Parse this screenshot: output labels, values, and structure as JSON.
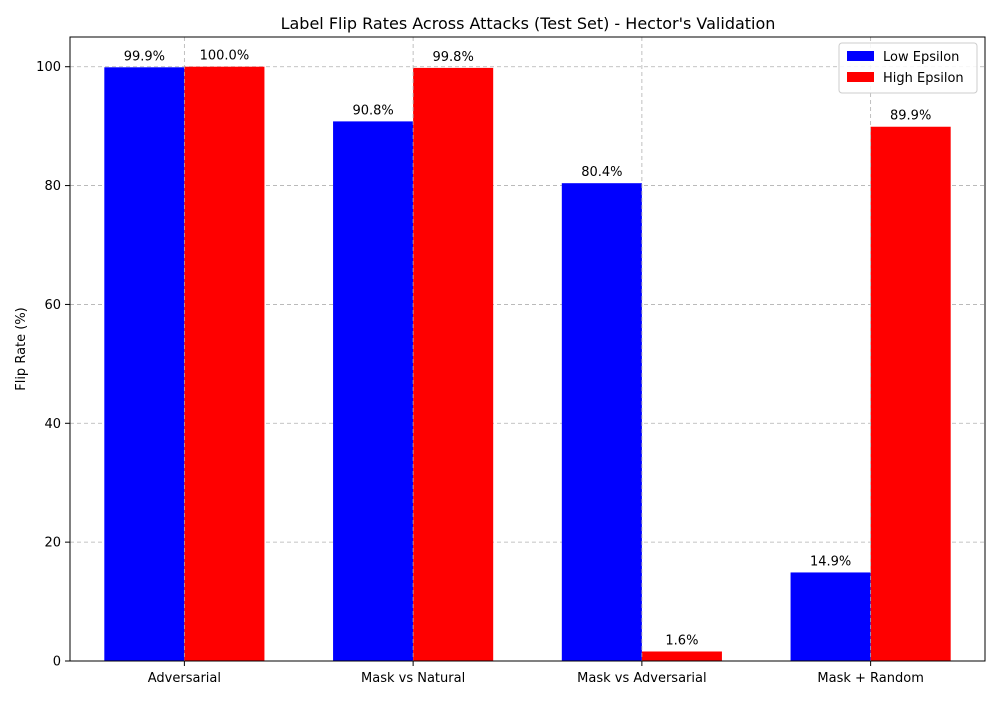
{
  "chart_data": {
    "type": "bar",
    "title": "Label Flip Rates Across Attacks (Test Set) - Hector's Validation",
    "xlabel": "",
    "ylabel": "Flip Rate (%)",
    "ylim": [
      0,
      105
    ],
    "yticks": [
      0,
      20,
      40,
      60,
      80,
      100
    ],
    "grid": true,
    "legend_position": "top-right",
    "categories": [
      "Adversarial",
      "Mask vs Natural",
      "Mask vs Adversarial",
      "Mask + Random"
    ],
    "series": [
      {
        "name": "Low Epsilon",
        "color": "#0000ff",
        "values": [
          99.9,
          90.8,
          80.4,
          14.9
        ],
        "labels": [
          "99.9%",
          "90.8%",
          "80.4%",
          "14.9%"
        ]
      },
      {
        "name": "High Epsilon",
        "color": "#ff0000",
        "values": [
          100.0,
          99.8,
          1.6,
          89.9
        ],
        "labels": [
          "100.0%",
          "99.8%",
          "1.6%",
          "89.9%"
        ]
      }
    ]
  }
}
